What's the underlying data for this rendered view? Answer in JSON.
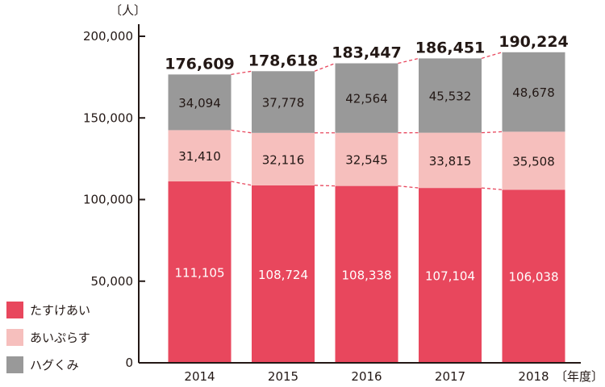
{
  "chart_data": {
    "type": "bar",
    "stacked": true,
    "y_unit_label": "〔人〕",
    "x_unit_label": "〔年度〕",
    "categories": [
      "2014",
      "2015",
      "2016",
      "2017",
      "2018"
    ],
    "ylim": [
      0,
      200000
    ],
    "yticks": [
      "0",
      "50,000",
      "100,000",
      "150,000",
      "200,000"
    ],
    "ytick_values": [
      0,
      50000,
      100000,
      150000,
      200000
    ],
    "series": [
      {
        "name": "たすけあい",
        "color": "#e8475d",
        "values": [
          111105,
          108724,
          108338,
          107104,
          106038
        ],
        "labels": [
          "111,105",
          "108,724",
          "108,338",
          "107,104",
          "106,038"
        ]
      },
      {
        "name": "あいぷらす",
        "color": "#f6bfbd",
        "values": [
          31410,
          32116,
          32545,
          33815,
          35508
        ],
        "labels": [
          "31,410",
          "32,116",
          "32,545",
          "33,815",
          "35,508"
        ]
      },
      {
        "name": "ハグくみ",
        "color": "#999999",
        "values": [
          34094,
          37778,
          42564,
          45532,
          48678
        ],
        "labels": [
          "34,094",
          "37,778",
          "42,564",
          "45,532",
          "48,678"
        ]
      }
    ],
    "totals": [
      176609,
      178618,
      183447,
      186451,
      190224
    ],
    "total_labels": [
      "176,609",
      "178,618",
      "183,447",
      "186,451",
      "190,224"
    ],
    "connector_color": "#e8475d",
    "grid": false,
    "legend_position": "bottom-left"
  }
}
